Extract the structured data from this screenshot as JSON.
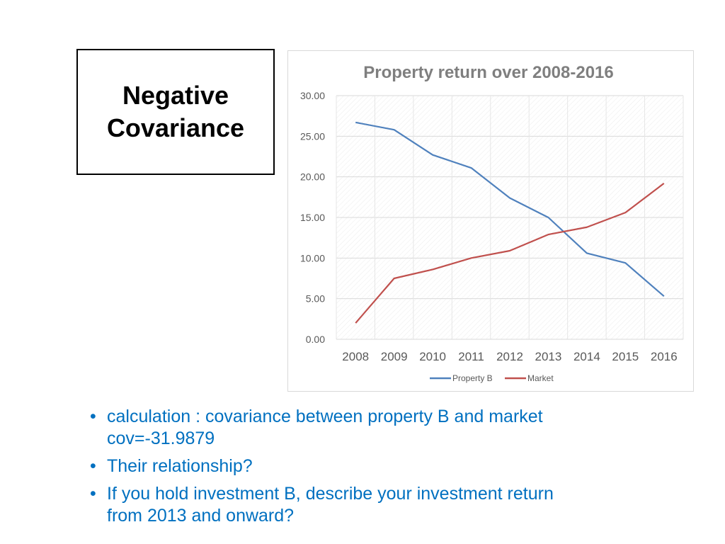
{
  "slide": {
    "heading_line1": "Negative",
    "heading_line2": "Covariance"
  },
  "bullets": [
    {
      "line1": "calculation : covariance between property B and market",
      "line2": "cov=-31.9879"
    },
    {
      "line1": "Their relationship?",
      "line2": ""
    },
    {
      "line1": "If you hold investment B, describe your investment return",
      "line2": "from 2013 and onward?"
    }
  ],
  "colors": {
    "bullet_text": "#0070c0",
    "property_b": "#4f81bd",
    "market": "#c0504d",
    "title_gray": "#7f7f7f"
  },
  "chart_data": {
    "type": "line",
    "title": "Property return over 2008-2016",
    "categories": [
      "2008",
      "2009",
      "2010",
      "2011",
      "2012",
      "2013",
      "2014",
      "2015",
      "2016"
    ],
    "series": [
      {
        "name": "Property B",
        "color": "#4f81bd",
        "values": [
          26.7,
          25.8,
          22.7,
          21.1,
          17.4,
          15.0,
          10.6,
          9.4,
          5.3
        ]
      },
      {
        "name": "Market",
        "color": "#c0504d",
        "values": [
          2.0,
          7.5,
          8.6,
          10.0,
          10.9,
          12.9,
          13.8,
          15.6,
          19.2
        ]
      }
    ],
    "ylim": [
      0,
      30
    ],
    "yticks": [
      "0.00",
      "5.00",
      "10.00",
      "15.00",
      "20.00",
      "25.00",
      "30.00"
    ],
    "legend_position": "bottom",
    "xlabel": "",
    "ylabel": ""
  }
}
